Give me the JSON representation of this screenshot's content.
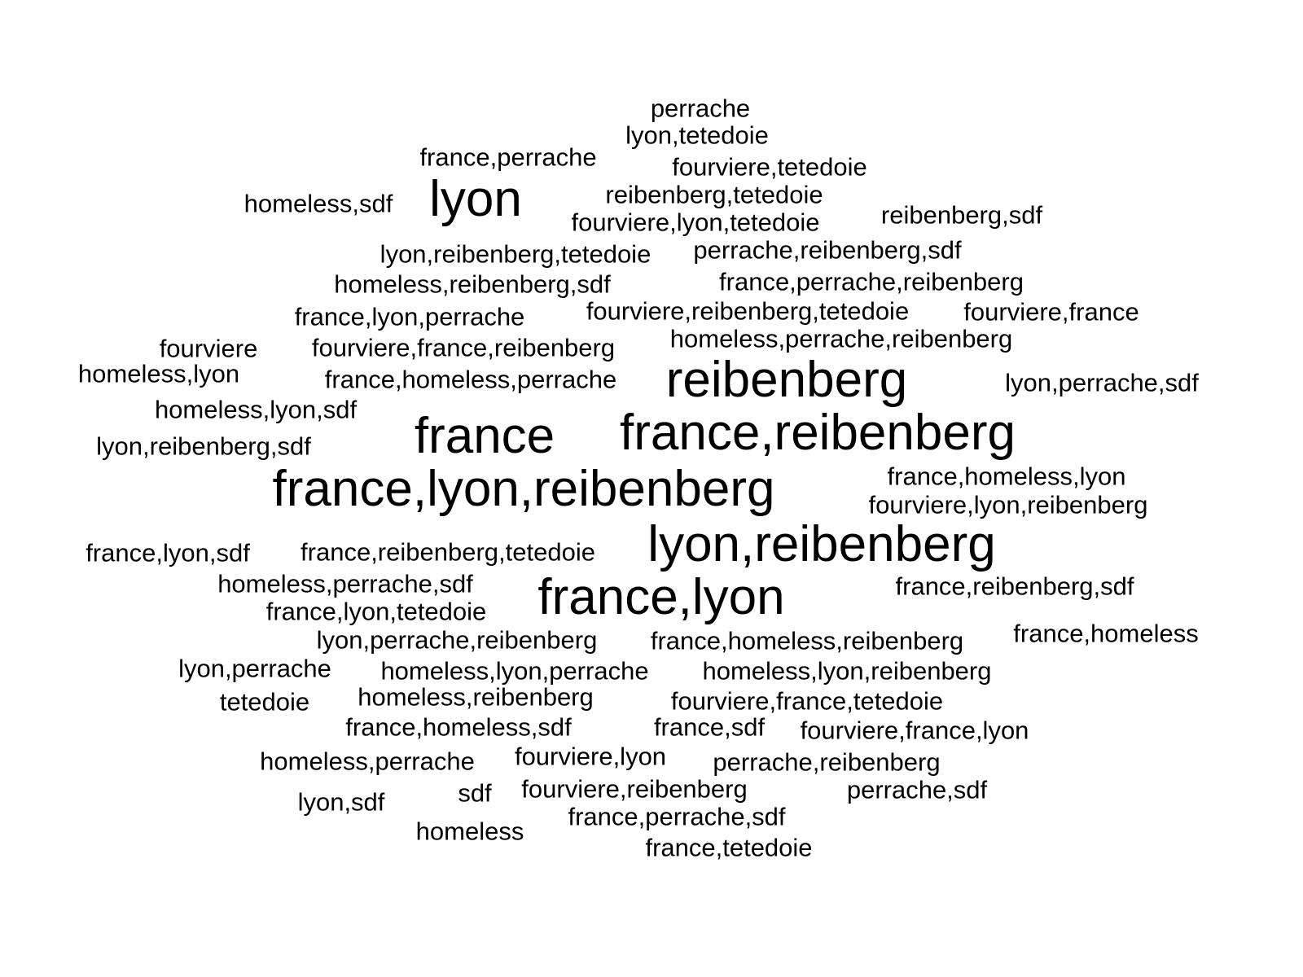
{
  "text_color": "#000000",
  "background_color": "#ffffff",
  "words": [
    {
      "text": "perrache",
      "weight": 1
    },
    {
      "text": "lyon,tetedoie",
      "weight": 1
    },
    {
      "text": "france,perrache",
      "weight": 1
    },
    {
      "text": "fourviere,tetedoie",
      "weight": 1
    },
    {
      "text": "lyon",
      "weight": 3
    },
    {
      "text": "homeless,sdf",
      "weight": 1
    },
    {
      "text": "reibenberg,tetedoie",
      "weight": 1
    },
    {
      "text": "fourviere,lyon,tetedoie",
      "weight": 1
    },
    {
      "text": "reibenberg,sdf",
      "weight": 1
    },
    {
      "text": "lyon,reibenberg,tetedoie",
      "weight": 1
    },
    {
      "text": "perrache,reibenberg,sdf",
      "weight": 1
    },
    {
      "text": "homeless,reibenberg,sdf",
      "weight": 1
    },
    {
      "text": "france,perrache,reibenberg",
      "weight": 1
    },
    {
      "text": "france,lyon,perrache",
      "weight": 1
    },
    {
      "text": "fourviere,reibenberg,tetedoie",
      "weight": 1
    },
    {
      "text": "fourviere,france",
      "weight": 1
    },
    {
      "text": "fourviere",
      "weight": 1
    },
    {
      "text": "fourviere,france,reibenberg",
      "weight": 1
    },
    {
      "text": "homeless,perrache,reibenberg",
      "weight": 1
    },
    {
      "text": "homeless,lyon",
      "weight": 1
    },
    {
      "text": "france,homeless,perrache",
      "weight": 1
    },
    {
      "text": "reibenberg",
      "weight": 3
    },
    {
      "text": "lyon,perrache,sdf",
      "weight": 1
    },
    {
      "text": "homeless,lyon,sdf",
      "weight": 1
    },
    {
      "text": "france",
      "weight": 3
    },
    {
      "text": "france,reibenberg",
      "weight": 3
    },
    {
      "text": "lyon,reibenberg,sdf",
      "weight": 1
    },
    {
      "text": "france,homeless,lyon",
      "weight": 1
    },
    {
      "text": "france,lyon,reibenberg",
      "weight": 3
    },
    {
      "text": "fourviere,lyon,reibenberg",
      "weight": 1
    },
    {
      "text": "lyon,reibenberg",
      "weight": 3
    },
    {
      "text": "france,lyon,sdf",
      "weight": 1
    },
    {
      "text": "france,reibenberg,tetedoie",
      "weight": 1
    },
    {
      "text": "homeless,perrache,sdf",
      "weight": 1
    },
    {
      "text": "france,lyon",
      "weight": 3
    },
    {
      "text": "france,reibenberg,sdf",
      "weight": 1
    },
    {
      "text": "france,lyon,tetedoie",
      "weight": 1
    },
    {
      "text": "france,homeless",
      "weight": 1
    },
    {
      "text": "lyon,perrache,reibenberg",
      "weight": 1
    },
    {
      "text": "france,homeless,reibenberg",
      "weight": 1
    },
    {
      "text": "lyon,perrache",
      "weight": 1
    },
    {
      "text": "homeless,lyon,perrache",
      "weight": 1
    },
    {
      "text": "homeless,lyon,reibenberg",
      "weight": 1
    },
    {
      "text": "tetedoie",
      "weight": 1
    },
    {
      "text": "homeless,reibenberg",
      "weight": 1
    },
    {
      "text": "fourviere,france,tetedoie",
      "weight": 1
    },
    {
      "text": "france,homeless,sdf",
      "weight": 1
    },
    {
      "text": "france,sdf",
      "weight": 1
    },
    {
      "text": "fourviere,france,lyon",
      "weight": 1
    },
    {
      "text": "homeless,perrache",
      "weight": 1
    },
    {
      "text": "fourviere,lyon",
      "weight": 1
    },
    {
      "text": "perrache,reibenberg",
      "weight": 1
    },
    {
      "text": "lyon,sdf",
      "weight": 1
    },
    {
      "text": "sdf",
      "weight": 1
    },
    {
      "text": "fourviere,reibenberg",
      "weight": 1
    },
    {
      "text": "perrache,sdf",
      "weight": 1
    },
    {
      "text": "france,perrache,sdf",
      "weight": 1
    },
    {
      "text": "homeless",
      "weight": 1
    },
    {
      "text": "france,tetedoie",
      "weight": 1
    }
  ]
}
